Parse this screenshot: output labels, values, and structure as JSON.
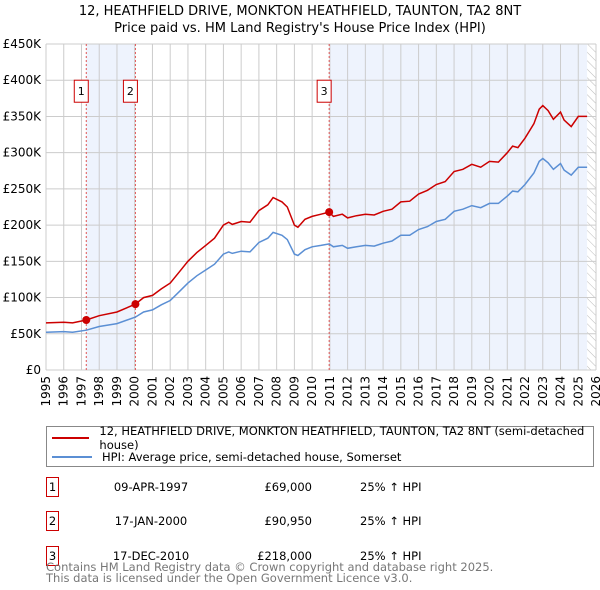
{
  "chart_data": {
    "type": "line",
    "title": "12, HEATHFIELD DRIVE, MONKTON HEATHFIELD, TAUNTON, TA2 8NT",
    "subtitle": "Price paid vs. HM Land Registry's House Price Index (HPI)",
    "xlim": [
      1995,
      2026
    ],
    "ylim": [
      0,
      450000
    ],
    "x_ticks": [
      "1995",
      "1996",
      "1997",
      "1998",
      "1999",
      "2000",
      "2001",
      "2002",
      "2003",
      "2004",
      "2005",
      "2006",
      "2007",
      "2008",
      "2009",
      "2010",
      "2011",
      "2012",
      "2013",
      "2014",
      "2015",
      "2016",
      "2017",
      "2018",
      "2019",
      "2020",
      "2021",
      "2022",
      "2023",
      "2024",
      "2025",
      "2026"
    ],
    "y_ticks": [
      {
        "v": 0,
        "label": "£0"
      },
      {
        "v": 50000,
        "label": "£50K"
      },
      {
        "v": 100000,
        "label": "£100K"
      },
      {
        "v": 150000,
        "label": "£150K"
      },
      {
        "v": 200000,
        "label": "£200K"
      },
      {
        "v": 250000,
        "label": "£250K"
      },
      {
        "v": 300000,
        "label": "£300K"
      },
      {
        "v": 350000,
        "label": "£350K"
      },
      {
        "v": 400000,
        "label": "£400K"
      },
      {
        "v": 450000,
        "label": "£450K"
      }
    ],
    "grid": true,
    "x": [
      1995,
      1996,
      1996.5,
      1997.27,
      1998,
      1999,
      2000.04,
      2000.5,
      2001,
      2001.5,
      2002,
      2002.5,
      2003,
      2003.5,
      2004,
      2004.5,
      2005,
      2005.3,
      2005.5,
      2006,
      2006.5,
      2007,
      2007.5,
      2007.8,
      2008.3,
      2008.6,
      2009,
      2009.2,
      2009.6,
      2010,
      2010.5,
      2010.96,
      2011.2,
      2011.7,
      2012,
      2012.5,
      2013,
      2013.5,
      2014,
      2014.5,
      2015,
      2015.5,
      2016,
      2016.5,
      2017,
      2017.5,
      2018,
      2018.5,
      2019,
      2019.5,
      2020,
      2020.5,
      2021,
      2021.3,
      2021.6,
      2022,
      2022.5,
      2022.8,
      2023,
      2023.3,
      2023.6,
      2024,
      2024.2,
      2024.6,
      2025,
      2025.5
    ],
    "series": [
      {
        "name": "12, HEATHFIELD DRIVE, MONKTON HEATHFIELD, TAUNTON, TA2 8NT (semi-detached house)",
        "color": "#cc0000",
        "values": [
          65,
          66,
          65,
          69,
          75,
          80,
          91,
          100,
          103,
          112,
          120,
          135,
          150,
          162,
          172,
          182,
          200,
          204,
          201,
          205,
          204,
          220,
          228,
          238,
          232,
          225,
          200,
          197,
          208,
          212,
          215,
          218,
          212,
          215,
          210,
          213,
          215,
          214,
          219,
          222,
          232,
          233,
          243,
          248,
          256,
          260,
          274,
          277,
          284,
          280,
          288,
          287,
          300,
          309,
          307,
          320,
          340,
          360,
          365,
          358,
          346,
          356,
          345,
          336,
          350,
          350
        ]
      },
      {
        "name": "HPI: Average price, semi-detached house, Somerset",
        "color": "#5b8fd4",
        "values": [
          52,
          53,
          52,
          55,
          60,
          64,
          73,
          80,
          83,
          90,
          96,
          108,
          120,
          130,
          138,
          146,
          160,
          163,
          161,
          164,
          163,
          176,
          182,
          190,
          186,
          180,
          160,
          158,
          166,
          170,
          172,
          174,
          170,
          172,
          168,
          170,
          172,
          171,
          175,
          178,
          186,
          186,
          194,
          198,
          205,
          208,
          219,
          222,
          227,
          224,
          230,
          230,
          240,
          247,
          246,
          256,
          272,
          288,
          292,
          286,
          277,
          285,
          276,
          269,
          280,
          280
        ]
      }
    ],
    "value_unit": "thousands GBP",
    "sales": [
      {
        "id": "1",
        "x": 1997.27,
        "price": 69000,
        "date": "09-APR-1997",
        "price_label": "£69,000",
        "hpi": "25% ↑ HPI"
      },
      {
        "id": "2",
        "x": 2000.04,
        "price": 90950,
        "date": "17-JAN-2000",
        "price_label": "£90,950",
        "hpi": "25% ↑ HPI"
      },
      {
        "id": "3",
        "x": 2010.96,
        "price": 218000,
        "date": "17-DEC-2010",
        "price_label": "£218,000",
        "hpi": "25% ↑ HPI"
      }
    ],
    "shaded_ranges": [
      [
        1997.27,
        2000.04
      ],
      [
        2010.96,
        2025.5
      ]
    ],
    "hatched_from": 2025.5,
    "legend_position": "below"
  },
  "footer": {
    "line1": "Contains HM Land Registry data © Crown copyright and database right 2025.",
    "line2": "This data is licensed under the Open Government Licence v3.0."
  }
}
